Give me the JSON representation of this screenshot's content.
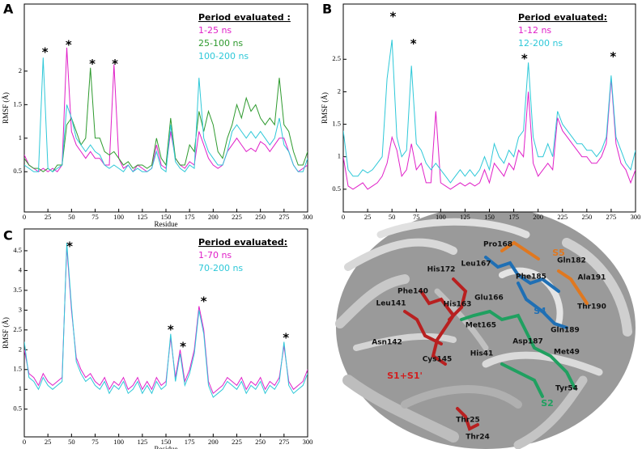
{
  "chart_data": [
    {
      "type": "line",
      "panel": "A",
      "legend_title": "Period evaluated :",
      "xlabel": "Residue",
      "ylabel": "RMSF (Å)",
      "x": [
        0,
        5,
        10,
        15,
        20,
        25,
        30,
        35,
        40,
        45,
        50,
        55,
        60,
        65,
        70,
        75,
        80,
        85,
        90,
        95,
        100,
        105,
        110,
        115,
        120,
        125,
        130,
        135,
        140,
        145,
        150,
        155,
        160,
        165,
        170,
        175,
        180,
        185,
        190,
        195,
        200,
        205,
        210,
        215,
        220,
        225,
        230,
        235,
        240,
        245,
        250,
        255,
        260,
        265,
        270,
        275,
        280,
        285,
        290,
        295,
        300
      ],
      "series": [
        {
          "name": "1-25 ns",
          "color": "#e020c8",
          "values": [
            0.75,
            0.6,
            0.55,
            0.5,
            0.55,
            0.5,
            0.55,
            0.5,
            0.6,
            2.35,
            1.1,
            0.9,
            0.8,
            0.7,
            0.8,
            0.7,
            0.7,
            0.6,
            0.6,
            2.1,
            0.7,
            0.55,
            0.6,
            0.5,
            0.6,
            0.55,
            0.5,
            0.55,
            0.9,
            0.6,
            0.55,
            1.1,
            0.7,
            0.6,
            0.55,
            0.65,
            0.6,
            1.1,
            0.9,
            0.7,
            0.6,
            0.55,
            0.6,
            0.8,
            0.9,
            1.0,
            0.9,
            0.8,
            0.85,
            0.8,
            0.95,
            0.9,
            0.8,
            0.9,
            1.0,
            1.0,
            0.8,
            0.6,
            0.5,
            0.55,
            0.6
          ]
        },
        {
          "name": "25-100 ns",
          "color": "#2e9a2e",
          "values": [
            0.7,
            0.6,
            0.55,
            0.55,
            0.5,
            0.55,
            0.5,
            0.6,
            0.6,
            1.2,
            1.3,
            1.1,
            0.9,
            1.0,
            2.05,
            1.0,
            1.0,
            0.8,
            0.75,
            0.8,
            0.7,
            0.6,
            0.65,
            0.55,
            0.6,
            0.6,
            0.55,
            0.6,
            1.0,
            0.7,
            0.6,
            1.3,
            0.7,
            0.6,
            0.6,
            0.9,
            0.8,
            1.4,
            1.1,
            1.4,
            1.2,
            0.8,
            0.7,
            1.0,
            1.2,
            1.5,
            1.3,
            1.6,
            1.4,
            1.5,
            1.3,
            1.2,
            1.3,
            1.2,
            1.9,
            1.2,
            1.1,
            0.8,
            0.6,
            0.6,
            0.8
          ]
        },
        {
          "name": "100-200 ns",
          "color": "#2ec8d8",
          "values": [
            0.6,
            0.55,
            0.5,
            0.5,
            2.2,
            0.55,
            0.5,
            0.55,
            0.6,
            1.5,
            1.3,
            1.0,
            0.9,
            0.8,
            0.9,
            0.8,
            0.75,
            0.6,
            0.55,
            0.6,
            0.55,
            0.5,
            0.6,
            0.5,
            0.55,
            0.5,
            0.5,
            0.55,
            0.8,
            0.55,
            0.5,
            1.2,
            0.65,
            0.55,
            0.5,
            0.6,
            0.55,
            1.9,
            1.0,
            0.8,
            0.7,
            0.6,
            0.6,
            0.8,
            1.1,
            1.2,
            1.1,
            1.0,
            1.1,
            1.0,
            1.1,
            1.0,
            0.9,
            1.0,
            1.3,
            0.9,
            0.8,
            0.6,
            0.5,
            0.5,
            0.7
          ]
        }
      ],
      "xlim": [
        0,
        300
      ],
      "xticks": [
        0,
        25,
        50,
        75,
        100,
        125,
        150,
        175,
        200,
        225,
        250,
        275,
        300
      ],
      "ylim": [
        -0.1,
        3.0
      ],
      "yticks": [
        0.5,
        1,
        1.5,
        2
      ],
      "annotations": [
        {
          "text": "*",
          "x": 22,
          "y": 2.31
        },
        {
          "text": "*",
          "x": 47,
          "y": 2.42
        },
        {
          "text": "*",
          "x": 72,
          "y": 2.14
        },
        {
          "text": "*",
          "x": 96,
          "y": 2.14
        }
      ]
    },
    {
      "type": "line",
      "panel": "B",
      "legend_title": "Period evaluated:",
      "ylabel": "RMSF (Å)",
      "x": [
        0,
        5,
        10,
        15,
        20,
        25,
        30,
        35,
        40,
        45,
        50,
        55,
        60,
        65,
        70,
        75,
        80,
        85,
        90,
        95,
        100,
        105,
        110,
        115,
        120,
        125,
        130,
        135,
        140,
        145,
        150,
        155,
        160,
        165,
        170,
        175,
        180,
        185,
        190,
        195,
        200,
        205,
        210,
        215,
        220,
        225,
        230,
        235,
        240,
        245,
        250,
        255,
        260,
        265,
        270,
        275,
        280,
        285,
        290,
        295,
        300
      ],
      "series": [
        {
          "name": "1-12 ns",
          "color": "#e020c8",
          "values": [
            1.0,
            0.55,
            0.5,
            0.55,
            0.6,
            0.5,
            0.55,
            0.6,
            0.7,
            0.9,
            1.3,
            1.1,
            0.7,
            0.8,
            1.2,
            0.8,
            0.9,
            0.6,
            0.6,
            1.7,
            0.6,
            0.55,
            0.5,
            0.55,
            0.6,
            0.55,
            0.6,
            0.55,
            0.6,
            0.8,
            0.6,
            0.9,
            0.8,
            0.7,
            0.9,
            0.8,
            1.1,
            1.0,
            2.0,
            0.9,
            0.7,
            0.8,
            0.9,
            0.8,
            1.6,
            1.4,
            1.3,
            1.2,
            1.1,
            1.0,
            1.0,
            0.9,
            0.9,
            1.0,
            1.2,
            2.2,
            1.2,
            0.9,
            0.8,
            0.6,
            0.8
          ]
        },
        {
          "name": "12-200 ns",
          "color": "#2ec8d8",
          "values": [
            1.4,
            0.8,
            0.7,
            0.7,
            0.8,
            0.75,
            0.8,
            0.9,
            1.0,
            2.2,
            2.8,
            1.3,
            1.0,
            1.1,
            2.4,
            1.2,
            1.1,
            0.9,
            0.8,
            0.9,
            0.8,
            0.7,
            0.6,
            0.7,
            0.8,
            0.7,
            0.8,
            0.7,
            0.8,
            1.0,
            0.8,
            1.2,
            1.0,
            0.9,
            1.1,
            1.0,
            1.3,
            1.4,
            2.45,
            1.3,
            1.0,
            1.0,
            1.2,
            1.0,
            1.7,
            1.5,
            1.4,
            1.3,
            1.2,
            1.2,
            1.1,
            1.1,
            1.0,
            1.1,
            1.3,
            2.25,
            1.3,
            1.1,
            0.9,
            0.8,
            1.1
          ]
        }
      ],
      "xlim": [
        0,
        300
      ],
      "xticks": [
        0,
        25,
        50,
        75,
        100,
        125,
        150,
        175,
        200,
        225,
        250,
        275,
        300
      ],
      "ylim": [
        0.15,
        3.35
      ],
      "yticks": [
        0.5,
        1,
        1.5,
        2,
        2.5
      ],
      "annotations": [
        {
          "text": "*",
          "x": 51,
          "y": 3.19
        },
        {
          "text": "*",
          "x": 72,
          "y": 2.77
        },
        {
          "text": "*",
          "x": 186,
          "y": 2.54
        },
        {
          "text": "*",
          "x": 277,
          "y": 2.57
        }
      ]
    },
    {
      "type": "line",
      "panel": "C",
      "legend_title": "Period evaluated:",
      "xlabel": "Residue",
      "ylabel": "RMSF (Å)",
      "x": [
        0,
        5,
        10,
        15,
        20,
        25,
        30,
        35,
        40,
        45,
        50,
        55,
        60,
        65,
        70,
        75,
        80,
        85,
        90,
        95,
        100,
        105,
        110,
        115,
        120,
        125,
        130,
        135,
        140,
        145,
        150,
        155,
        160,
        165,
        170,
        175,
        180,
        185,
        190,
        195,
        200,
        205,
        210,
        215,
        220,
        225,
        230,
        235,
        240,
        245,
        250,
        255,
        260,
        265,
        270,
        275,
        280,
        285,
        290,
        295,
        300
      ],
      "series": [
        {
          "name": "1-70 ns",
          "color": "#e020c8",
          "values": [
            2.0,
            1.4,
            1.3,
            1.1,
            1.4,
            1.2,
            1.1,
            1.2,
            1.3,
            4.6,
            3.0,
            1.8,
            1.5,
            1.3,
            1.4,
            1.2,
            1.1,
            1.3,
            1.0,
            1.2,
            1.1,
            1.3,
            1.0,
            1.1,
            1.3,
            1.0,
            1.2,
            1.0,
            1.3,
            1.1,
            1.2,
            2.3,
            1.3,
            2.0,
            1.2,
            1.5,
            2.0,
            3.1,
            2.5,
            1.2,
            0.9,
            1.0,
            1.1,
            1.3,
            1.2,
            1.1,
            1.3,
            1.0,
            1.2,
            1.1,
            1.3,
            1.0,
            1.2,
            1.1,
            1.3,
            2.1,
            1.2,
            1.0,
            1.1,
            1.2,
            1.5
          ]
        },
        {
          "name": "70-200 ns",
          "color": "#2ec8d8",
          "values": [
            2.2,
            1.3,
            1.2,
            1.0,
            1.3,
            1.1,
            1.0,
            1.1,
            1.2,
            4.7,
            3.1,
            1.7,
            1.4,
            1.2,
            1.3,
            1.1,
            1.0,
            1.2,
            0.9,
            1.1,
            1.0,
            1.2,
            0.9,
            1.0,
            1.2,
            0.9,
            1.1,
            0.9,
            1.2,
            1.0,
            1.1,
            2.4,
            1.2,
            1.9,
            1.1,
            1.4,
            1.9,
            3.0,
            2.4,
            1.1,
            0.8,
            0.9,
            1.0,
            1.2,
            1.1,
            1.0,
            1.2,
            0.9,
            1.1,
            1.0,
            1.2,
            0.9,
            1.1,
            1.0,
            1.2,
            2.2,
            1.1,
            0.9,
            1.0,
            1.1,
            1.4
          ]
        }
      ],
      "xlim": [
        0,
        300
      ],
      "xticks": [
        0,
        25,
        50,
        75,
        100,
        125,
        150,
        175,
        200,
        225,
        250,
        275,
        300
      ],
      "ylim": [
        -0.2,
        5.05
      ],
      "yticks": [
        0.5,
        1,
        1.5,
        2,
        2.5,
        3,
        3.5,
        4,
        4.5
      ],
      "annotations": [
        {
          "text": "*",
          "x": 48,
          "y": 4.66
        },
        {
          "text": "*",
          "x": 155,
          "y": 2.56
        },
        {
          "text": "*",
          "x": 168,
          "y": 2.13
        },
        {
          "text": "*",
          "x": 190,
          "y": 3.27
        },
        {
          "text": "*",
          "x": 277,
          "y": 2.35
        }
      ]
    }
  ],
  "structure": {
    "residues": [
      "Pro168",
      "Leu167",
      "Gln182",
      "His172",
      "Phe185",
      "Ala191",
      "Phe140",
      "Glu166",
      "Leu141",
      "His163",
      "Thr190",
      "Met165",
      "Gln189",
      "Asn142",
      "Asp187",
      "His41",
      "Met49",
      "Cys145",
      "Tyr54",
      "Thr25",
      "Thr24"
    ],
    "subsites": [
      {
        "name": "S5",
        "color": "#e07820"
      },
      {
        "name": "S4",
        "color": "#1f6fb4"
      },
      {
        "name": "S1+S1'",
        "color": "#d02020"
      },
      {
        "name": "S2",
        "color": "#20a060"
      }
    ]
  }
}
